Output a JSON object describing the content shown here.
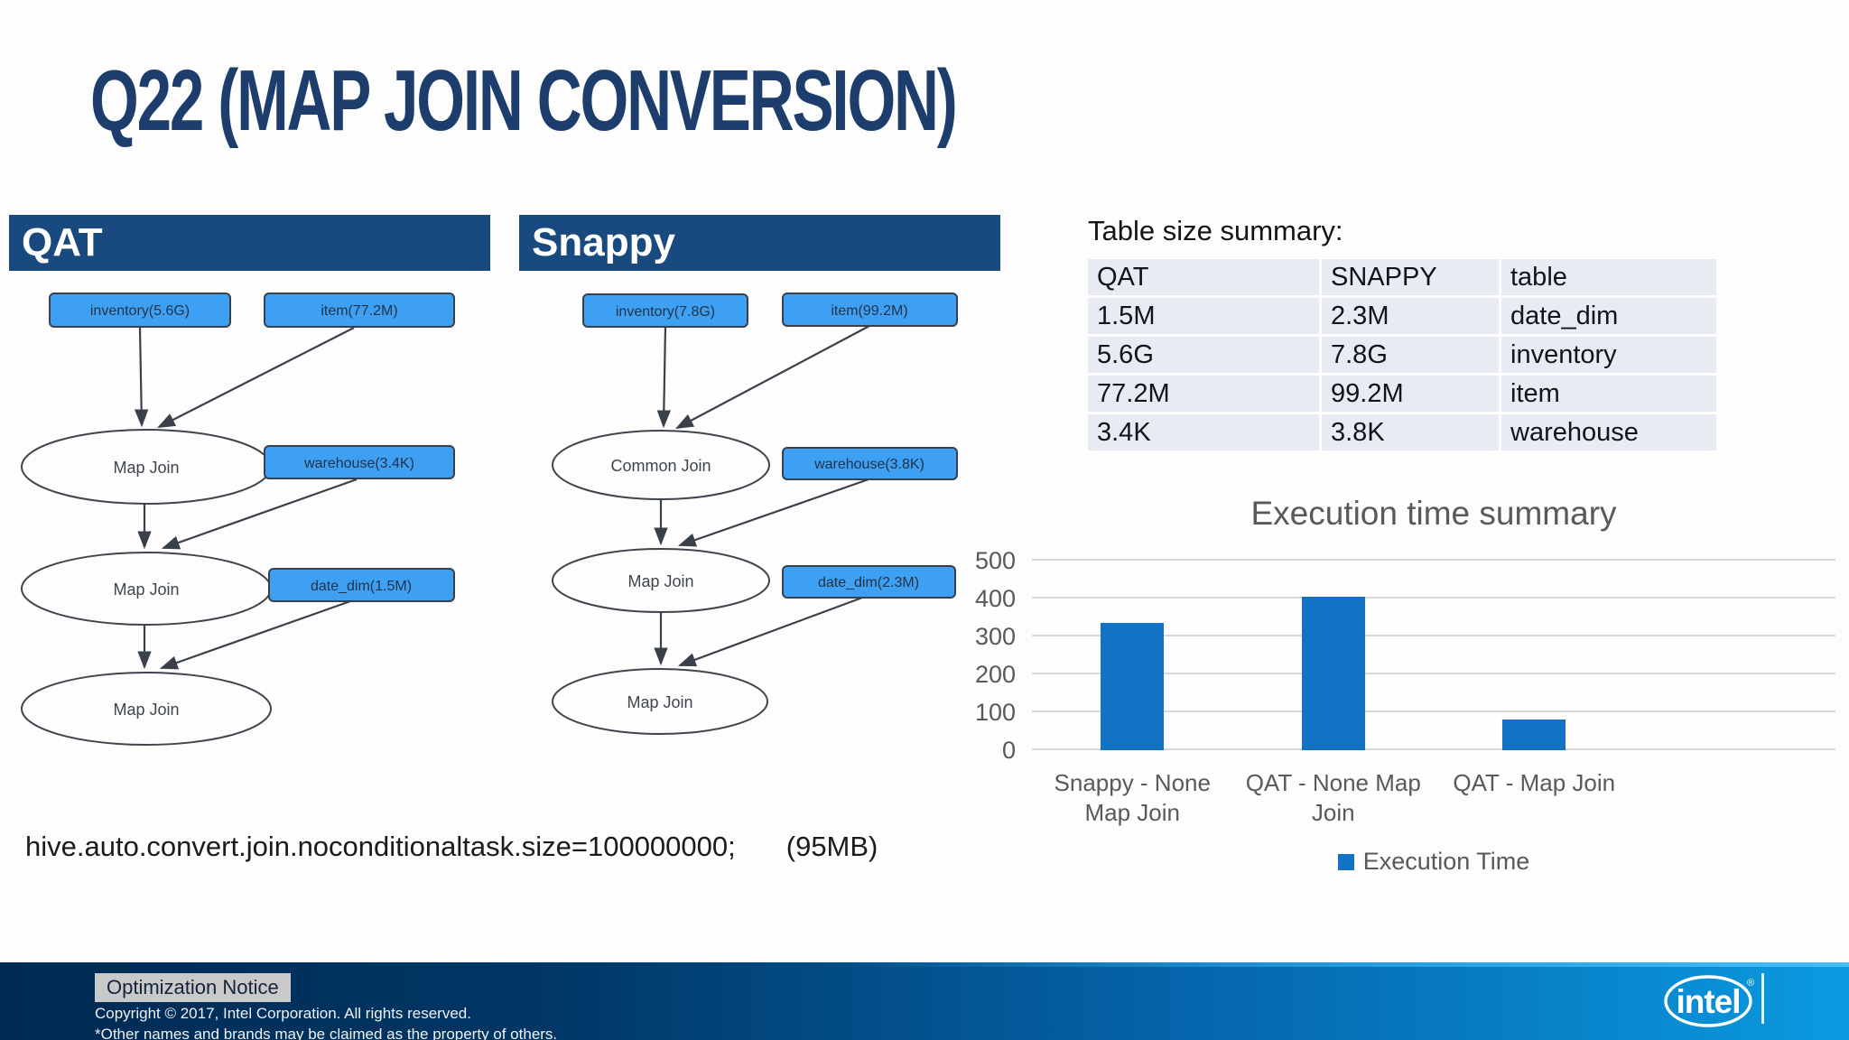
{
  "title": "Q22 (MAP JOIN CONVERSION)",
  "config": {
    "text": "hive.auto.convert.join.noconditionaltask.size=100000000;",
    "note": "(95MB)"
  },
  "qat": {
    "header": "QAT",
    "nodes": {
      "inventory": "inventory(5.6G)",
      "item": "item(77.2M)",
      "join1": "Map Join",
      "warehouse": "warehouse(3.4K)",
      "join2": "Map Join",
      "date_dim": "date_dim(1.5M)",
      "join3": "Map Join"
    }
  },
  "snappy": {
    "header": "Snappy",
    "nodes": {
      "inventory": "inventory(7.8G)",
      "item": "item(99.2M)",
      "join1": "Common Join",
      "warehouse": "warehouse(3.8K)",
      "join2": "Map Join",
      "date_dim": "date_dim(2.3M)",
      "join3": "Map Join"
    }
  },
  "table_summary": {
    "title": "Table size summary:",
    "columns": [
      "QAT",
      "SNAPPY",
      "table"
    ],
    "rows": [
      [
        "1.5M",
        "2.3M",
        "date_dim"
      ],
      [
        "5.6G",
        "7.8G",
        "inventory"
      ],
      [
        "77.2M",
        "99.2M",
        "item"
      ],
      [
        "3.4K",
        "3.8K",
        "warehouse"
      ]
    ]
  },
  "chart_data": {
    "type": "bar",
    "title": "Execution time summary",
    "categories": [
      "Snappy - None Map Join",
      "QAT - None Map Join",
      "QAT - Map Join"
    ],
    "series": [
      {
        "name": "Execution Time",
        "values": [
          335,
          405,
          80
        ]
      }
    ],
    "xlabel": "",
    "ylabel": "",
    "ylim": [
      0,
      500
    ],
    "yticks": [
      0,
      100,
      200,
      300,
      400,
      500
    ],
    "grid": true,
    "legend_position": "bottom",
    "bar_color": "#1273c4"
  },
  "footer": {
    "optimization_notice": "Optimization Notice",
    "copyright": "Copyright ©  2017, Intel Corporation. All rights reserved.",
    "trademark": "*Other names and brands may be claimed as the property of others.",
    "brand": "intel"
  }
}
